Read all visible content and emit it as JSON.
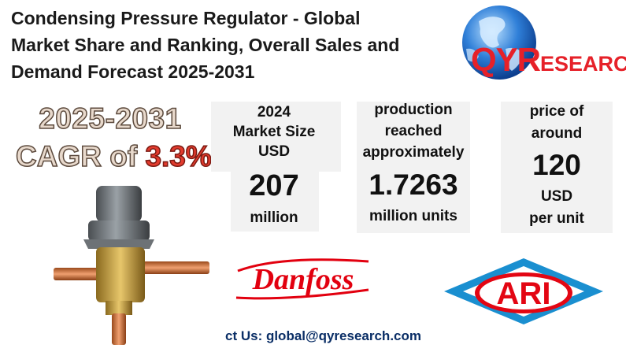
{
  "title": {
    "line1": "Condensing Pressure Regulator - Global",
    "line2": "Market Share and Ranking, Overall Sales and",
    "line3": "Demand Forecast 2025-2031"
  },
  "logo": {
    "brand_big": "QYR",
    "brand_small": "ESEARCH",
    "icon": "globe-icon"
  },
  "cagr": {
    "years": "2025-2031",
    "prefix": "CAGR of ",
    "value": "3.3%"
  },
  "stats": {
    "market": {
      "line1": "2024",
      "line2": "Market Size",
      "line3": "USD",
      "value": "207",
      "unit": "million"
    },
    "production": {
      "line1": "production",
      "line2": "reached",
      "line3": "approximately",
      "value": "1.7263",
      "unit": "million units"
    },
    "price": {
      "line1": "price of",
      "line2": "around",
      "value": "120",
      "unit1": "USD",
      "unit2": "per  unit"
    }
  },
  "brands": {
    "danfoss": "Danfoss",
    "ari": "ARI"
  },
  "contact": "ct Us: global@qyresearch.com",
  "colors": {
    "qyr_red": "#e62129",
    "danfoss_red": "#e2000f",
    "ari_blue": "#1a8fd0",
    "contact_blue": "#0a2e66"
  }
}
